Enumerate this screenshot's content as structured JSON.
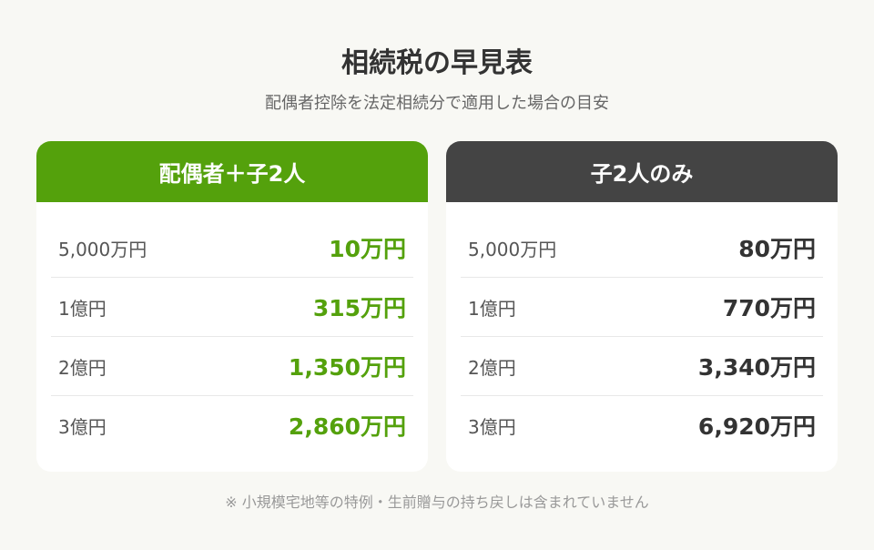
{
  "title": "相続税の早見表",
  "subtitle": "配偶者控除を法定相続分で適用した場合の目安",
  "colors": {
    "accent": "#54a10c",
    "dark_header": "#444444",
    "background": "#f8f8f4"
  },
  "cards": [
    {
      "header": "配偶者＋子2人",
      "rows": [
        {
          "label": "5,000万円",
          "value": "10万円"
        },
        {
          "label": "1億円",
          "value": "315万円"
        },
        {
          "label": "2億円",
          "value": "1,350万円"
        },
        {
          "label": "3億円",
          "value": "2,860万円"
        }
      ]
    },
    {
      "header": "子2人のみ",
      "rows": [
        {
          "label": "5,000万円",
          "value": "80万円"
        },
        {
          "label": "1億円",
          "value": "770万円"
        },
        {
          "label": "2億円",
          "value": "3,340万円"
        },
        {
          "label": "3億円",
          "value": "6,920万円"
        }
      ]
    }
  ],
  "note": "※ 小規模宅地等の特例・生前贈与の持ち戻しは含まれていません"
}
